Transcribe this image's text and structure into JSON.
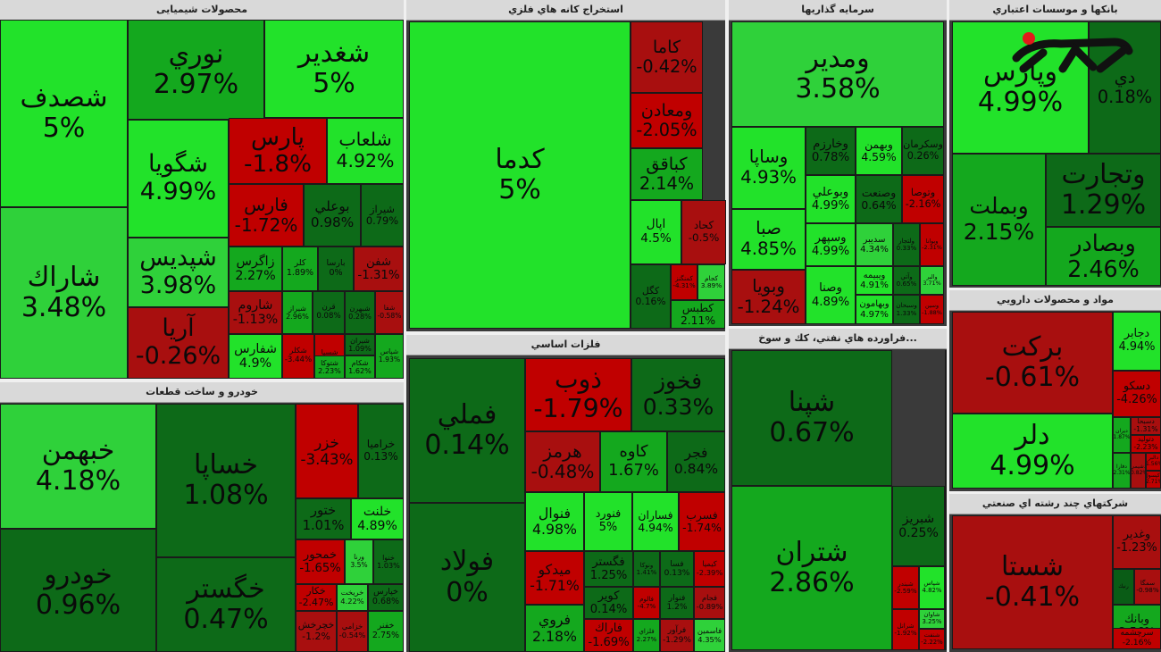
{
  "sectors": [
    {
      "key": "chem",
      "title": "محصولات شیمیایی",
      "tiles": [
        {
          "n": "شصدف",
          "v": "5%"
        },
        {
          "n": "شاراك",
          "v": "3.48%"
        },
        {
          "n": "نوري",
          "v": "2.97%"
        },
        {
          "n": "شغدير",
          "v": "5%"
        },
        {
          "n": "شگويا",
          "v": "4.99%"
        },
        {
          "n": "شپديس",
          "v": "3.98%"
        },
        {
          "n": "آريا",
          "v": "-0.26%"
        },
        {
          "n": "پارس",
          "v": "-1.8%"
        },
        {
          "n": "شلعاب",
          "v": "4.92%"
        },
        {
          "n": "فارس",
          "v": "-1.72%"
        },
        {
          "n": "بوعلي",
          "v": "0.98%"
        },
        {
          "n": "شيراز",
          "v": "0.79%"
        },
        {
          "n": "زاگرس",
          "v": "2.27%"
        },
        {
          "n": "كلر",
          "v": "1.89%"
        },
        {
          "n": "بارسا",
          "v": "0%"
        },
        {
          "n": "شفن",
          "v": "-1.31%"
        },
        {
          "n": "شاروم",
          "v": "-1.13%"
        },
        {
          "n": "شيراز",
          "v": "2.96%"
        },
        {
          "n": "قرن",
          "v": "0.08%"
        },
        {
          "n": "شبهرن",
          "v": "0.28%"
        },
        {
          "n": "شفارس",
          "v": "4.9%"
        },
        {
          "n": "شكلر",
          "v": "-3.44%"
        },
        {
          "n": "شسپا",
          "v": "-4.15%"
        },
        {
          "n": "شيران",
          "v": "1.09%"
        },
        {
          "n": "شتوكا",
          "v": "2.23%"
        },
        {
          "n": "شكام",
          "v": "1.62%"
        },
        {
          "n": "شفا",
          "v": "-0.58%"
        },
        {
          "n": "شپاس",
          "v": "1.93%"
        }
      ]
    },
    {
      "key": "mine",
      "title": "استخراج كانه هاي فلزي",
      "tiles": [
        {
          "n": "كدما",
          "v": "5%"
        },
        {
          "n": "كاما",
          "v": "-0.42%"
        },
        {
          "n": "ومعادن",
          "v": "-2.05%"
        },
        {
          "n": "كباقق",
          "v": "2.14%"
        },
        {
          "n": "اپال",
          "v": "4.5%"
        },
        {
          "n": "كحاد",
          "v": "-0.5%"
        },
        {
          "n": "كگل",
          "v": "0.16%"
        },
        {
          "n": "كمنگنز",
          "v": "-4.31%"
        },
        {
          "n": "كجام",
          "v": "3.89%"
        },
        {
          "n": "كطبس",
          "v": "2.11%"
        }
      ]
    },
    {
      "key": "inv",
      "title": "سرمايه گذاريها",
      "tiles": [
        {
          "n": "ومدير",
          "v": "3.58%"
        },
        {
          "n": "وساپا",
          "v": "4.93%"
        },
        {
          "n": "وخارزم",
          "v": "0.78%"
        },
        {
          "n": "وبهمن",
          "v": "4.59%"
        },
        {
          "n": "وسكرمان",
          "v": "0.26%"
        },
        {
          "n": "صبا",
          "v": "4.85%"
        },
        {
          "n": "وبوعلي",
          "v": "4.99%"
        },
        {
          "n": "وصنعت",
          "v": "0.64%"
        },
        {
          "n": "وتوصا",
          "v": "-2.16%"
        },
        {
          "n": "وسپهر",
          "v": "4.99%"
        },
        {
          "n": "سديبر",
          "v": "4.34%"
        },
        {
          "n": "ولتجار",
          "v": "0.33%"
        },
        {
          "n": "وبوانا",
          "v": "-2.31%"
        },
        {
          "n": "ويبيمه",
          "v": "4.91%"
        },
        {
          "n": "وآتي",
          "v": "0.65%"
        },
        {
          "n": "والبر",
          "v": "3.71%"
        },
        {
          "n": "وبويا",
          "v": "-1.24%"
        },
        {
          "n": "وصنا",
          "v": "4.89%"
        },
        {
          "n": "وبهامون",
          "v": "4.97%"
        },
        {
          "n": "وسبحان",
          "v": "1.33%"
        },
        {
          "n": "وسين",
          "v": "-1.88%"
        }
      ]
    },
    {
      "key": "bank",
      "title": "بانكها و موسسات اعتباري",
      "tiles": [
        {
          "n": "وپارس",
          "v": "4.99%"
        },
        {
          "n": "دي",
          "v": "0.18%"
        },
        {
          "n": "وبملت",
          "v": "2.15%"
        },
        {
          "n": "وتجارت",
          "v": "1.29%"
        },
        {
          "n": "وبصادر",
          "v": "2.46%"
        }
      ]
    },
    {
      "key": "auto",
      "title": "خودرو و ساخت قطعات",
      "tiles": [
        {
          "n": "خبهمن",
          "v": "4.18%"
        },
        {
          "n": "خودرو",
          "v": "0.96%"
        },
        {
          "n": "خساپا",
          "v": "1.08%"
        },
        {
          "n": "خگستر",
          "v": "0.47%"
        },
        {
          "n": "خزر",
          "v": "-3.43%"
        },
        {
          "n": "خراميا",
          "v": "0.13%"
        },
        {
          "n": "ختور",
          "v": "1.01%"
        },
        {
          "n": "خلنت",
          "v": "4.89%"
        },
        {
          "n": "خمحور",
          "v": "-1.65%"
        },
        {
          "n": "ورنا",
          "v": "3.5%"
        },
        {
          "n": "خنوا",
          "v": "1.03%"
        },
        {
          "n": "خكار",
          "v": "-2.47%"
        },
        {
          "n": "خريخت",
          "v": "4.22%"
        },
        {
          "n": "خپارس",
          "v": "0.68%"
        },
        {
          "n": "خچرخش",
          "v": "-1.2%"
        },
        {
          "n": "خزامي",
          "v": "-0.54%"
        },
        {
          "n": "خفنر",
          "v": "2.75%"
        }
      ]
    },
    {
      "key": "metal",
      "title": "فلزات اساسي",
      "tiles": [
        {
          "n": "فملي",
          "v": "0.14%"
        },
        {
          "n": "فولاد",
          "v": "0%"
        },
        {
          "n": "ذوب",
          "v": "-1.79%"
        },
        {
          "n": "فخوز",
          "v": "0.33%"
        },
        {
          "n": "هرمز",
          "v": "-0.48%"
        },
        {
          "n": "كاوه",
          "v": "1.67%"
        },
        {
          "n": "فجر",
          "v": "0.84%"
        },
        {
          "n": "فنوال",
          "v": "4.98%"
        },
        {
          "n": "فنورد",
          "v": "5%"
        },
        {
          "n": "فساران",
          "v": "4.94%"
        },
        {
          "n": "فسرب",
          "v": "-1.74%"
        },
        {
          "n": "ميدكو",
          "v": "-1.71%"
        },
        {
          "n": "فگستر",
          "v": "1.25%"
        },
        {
          "n": "ونوكا",
          "v": "1.41%"
        },
        {
          "n": "فسا",
          "v": "0.13%"
        },
        {
          "n": "كيميا",
          "v": "-2.39%"
        },
        {
          "n": "فروي",
          "v": "2.18%"
        },
        {
          "n": "كوير",
          "v": "0.14%"
        },
        {
          "n": "فالوم",
          "v": "-4.7%"
        },
        {
          "n": "فنوار",
          "v": "1.2%"
        },
        {
          "n": "فجام",
          "v": "-0.89%"
        },
        {
          "n": "فاراك",
          "v": "-1.69%"
        },
        {
          "n": "فلزاي",
          "v": "2.27%"
        },
        {
          "n": "فرآور",
          "v": "-1.29%"
        },
        {
          "n": "فاسمين",
          "v": "4.35%"
        }
      ]
    },
    {
      "key": "oil",
      "title": "...فراورده هاي نفتي، كك و سوخ",
      "tiles": [
        {
          "n": "شپنا",
          "v": "0.67%"
        },
        {
          "n": "شتران",
          "v": "2.86%"
        },
        {
          "n": "شبريز",
          "v": "0.25%"
        },
        {
          "n": "شبندر",
          "v": "-2.59%"
        },
        {
          "n": "شپاس",
          "v": "4.82%"
        },
        {
          "n": "شرانل",
          "v": "-1.92%"
        },
        {
          "n": "شاوان",
          "v": "3.25%"
        },
        {
          "n": "شنفت",
          "v": "-2.22%"
        },
        {
          "n": "شسينا",
          "v": "0.45%"
        }
      ]
    },
    {
      "key": "pharma",
      "title": "مواد و محصولات دارويي",
      "tiles": [
        {
          "n": "بركت",
          "v": "-0.61%"
        },
        {
          "n": "دلر",
          "v": "4.99%"
        },
        {
          "n": "دجابر",
          "v": "4.94%"
        },
        {
          "n": "دسكو",
          "v": "-4.26%"
        },
        {
          "n": "ديران",
          "v": "1.87%"
        },
        {
          "n": "دسبحا",
          "v": "-1.31%"
        },
        {
          "n": "دتوليد",
          "v": "-2.23%"
        },
        {
          "n": "دفارا",
          "v": "2.31%"
        },
        {
          "n": "دشيمي",
          "v": "-0.82%"
        },
        {
          "n": "دالبر",
          "v": "-1.56%"
        },
        {
          "n": "دكپسول",
          "v": "-2.71%"
        }
      ]
    },
    {
      "key": "multi",
      "title": "شركتهاي چند رشته اي صنعتي",
      "tiles": [
        {
          "n": "شستا",
          "v": "-0.41%"
        },
        {
          "n": "وغدير",
          "v": "-1.23%"
        },
        {
          "n": "رنيك",
          "v": ""
        },
        {
          "n": "وبانك",
          "v": "2.56%"
        },
        {
          "n": "سمگا",
          "v": "-0.98%"
        },
        {
          "n": "سرچشمه",
          "v": "-2.16%"
        }
      ]
    }
  ],
  "logo": {
    "text": "رکنا",
    "label": "logo"
  }
}
